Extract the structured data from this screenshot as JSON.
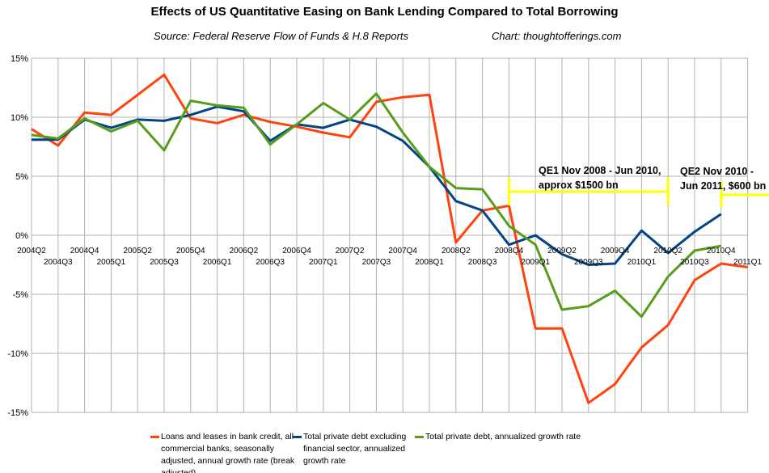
{
  "chart_data": {
    "type": "line",
    "title": "Effects of US Quantitative Easing on Bank Lending Compared to Total Borrowing",
    "subtitle": "Source: Federal Reserve Flow of Funds & H.8 Reports",
    "credit": "Chart: thoughtofferings.com",
    "xlabel": "",
    "ylabel": "",
    "ylim": [
      -15,
      15
    ],
    "yticks": [
      15,
      10,
      5,
      0,
      -5,
      -10,
      -15
    ],
    "ytick_labels": [
      "15%",
      "10%",
      "5%",
      "0%",
      "-5%",
      "-10%",
      "-15%"
    ],
    "grid": true,
    "legend_position": "bottom",
    "categories": [
      "2004Q2",
      "2004Q3",
      "2004Q4",
      "2005Q1",
      "2005Q2",
      "2005Q3",
      "2005Q4",
      "2006Q1",
      "2006Q2",
      "2006Q3",
      "2006Q4",
      "2007Q1",
      "2007Q2",
      "2007Q3",
      "2007Q4",
      "2008Q1",
      "2008Q2",
      "2008Q3",
      "2008Q4",
      "2009Q1",
      "2009Q2",
      "2009Q3",
      "2009Q4",
      "2010Q1",
      "2010Q2",
      "2010Q3",
      "2010Q4",
      "2011Q1"
    ],
    "series": [
      {
        "name": "Loans and leases in bank credit, all commercial banks, seasonally adjusted, annual growth rate (break adjusted)",
        "color": "#ff420e",
        "values": [
          9.0,
          7.6,
          10.4,
          10.2,
          11.9,
          13.6,
          9.9,
          9.5,
          10.2,
          9.6,
          9.2,
          8.7,
          8.3,
          11.3,
          11.7,
          11.9,
          -0.6,
          2.1,
          2.5,
          -7.9,
          -7.9,
          -14.2,
          -12.6,
          -9.5,
          -7.6,
          -3.8,
          -2.4,
          -2.7
        ]
      },
      {
        "name": "Total private debt excluding financial sector, annualized growth rate",
        "color": "#004586",
        "values": [
          8.1,
          8.1,
          9.8,
          9.1,
          9.8,
          9.7,
          10.2,
          10.9,
          10.5,
          8.0,
          9.4,
          9.1,
          9.8,
          9.2,
          8.0,
          5.8,
          2.9,
          2.1,
          -0.8,
          0.0,
          -1.6,
          -2.5,
          -2.4,
          0.4,
          -1.5,
          0.3,
          1.8,
          null
        ]
      },
      {
        "name": "Total private debt, annualized growth rate",
        "color": "#579d1c",
        "values": [
          8.5,
          8.2,
          9.9,
          8.8,
          9.7,
          7.2,
          11.4,
          11.0,
          10.8,
          7.7,
          9.4,
          11.2,
          9.8,
          12.0,
          8.7,
          5.8,
          4.0,
          3.9,
          0.8,
          -0.8,
          -6.3,
          -6.0,
          -4.7,
          -6.9,
          -3.5,
          -1.3,
          -0.9,
          null
        ]
      }
    ],
    "annotations": [
      {
        "lines": [
          "QE1 Nov 2008 - Jun 2010,",
          "approx $1500 bn"
        ],
        "from": "2008Q4",
        "to": "2010Q2",
        "color": "#ffff00"
      },
      {
        "lines": [
          "QE2 Nov 2010 -",
          "Jun 2011, $600 bn"
        ],
        "from": "2010Q4",
        "to": "2011Q1",
        "color": "#ffff00"
      }
    ]
  }
}
